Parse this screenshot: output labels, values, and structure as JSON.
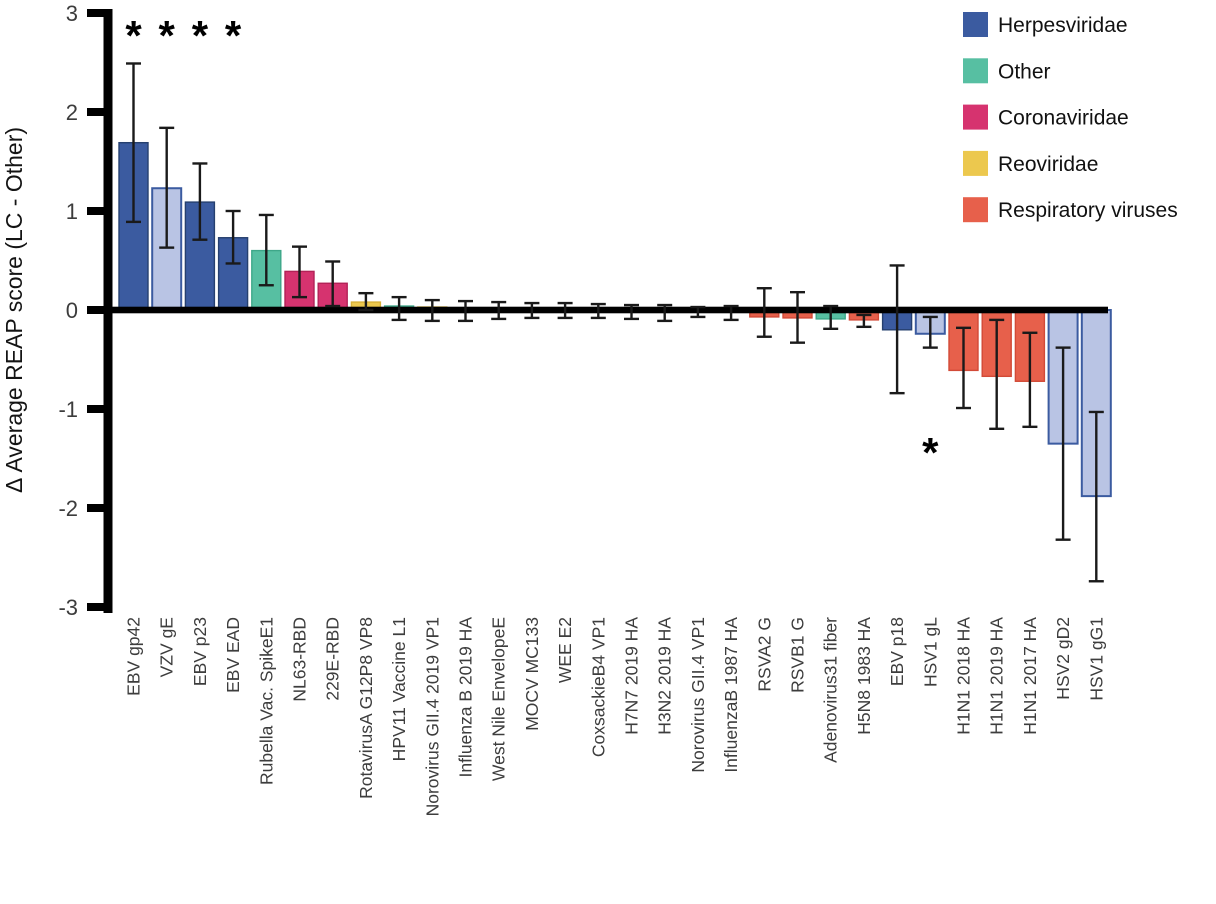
{
  "figure_name": "REAP score difference bar chart",
  "chart_data": {
    "type": "bar",
    "title": "",
    "xlabel": "",
    "ylabel": "Δ Average REAP score (LC - Other)",
    "ylim": [
      -3,
      3
    ],
    "yticks": [
      3,
      2,
      1,
      0,
      -1,
      -2,
      -3
    ],
    "grid": false,
    "legend_position": "top-right",
    "significance_marker": "*",
    "legend": [
      {
        "label": "Herpesviridae",
        "color_key": "blue"
      },
      {
        "label": "Other",
        "color_key": "teal"
      },
      {
        "label": "Coronaviridae",
        "color_key": "magenta"
      },
      {
        "label": "Reoviridae",
        "color_key": "yellow"
      },
      {
        "label": "Respiratory viruses",
        "color_key": "red"
      }
    ],
    "bars": [
      {
        "label": "EBV gp42",
        "color_key": "blue",
        "value": 1.69,
        "err_hi": 2.49,
        "err_lo": 0.89,
        "significant": "above"
      },
      {
        "label": "VZV gE",
        "color_key": "blue_light",
        "value": 1.23,
        "err_hi": 1.84,
        "err_lo": 0.63,
        "significant": "above"
      },
      {
        "label": "EBV p23",
        "color_key": "blue",
        "value": 1.09,
        "err_hi": 1.48,
        "err_lo": 0.71,
        "significant": "above"
      },
      {
        "label": "EBV EAD",
        "color_key": "blue",
        "value": 0.73,
        "err_hi": 1.0,
        "err_lo": 0.47,
        "significant": "above"
      },
      {
        "label": "Rubella Vac. SpikeE1",
        "color_key": "teal",
        "value": 0.6,
        "err_hi": 0.96,
        "err_lo": 0.25,
        "significant": null
      },
      {
        "label": "NL63-RBD",
        "color_key": "magenta",
        "value": 0.39,
        "err_hi": 0.64,
        "err_lo": 0.13,
        "significant": null
      },
      {
        "label": "229E-RBD",
        "color_key": "magenta",
        "value": 0.27,
        "err_hi": 0.49,
        "err_lo": 0.04,
        "significant": null
      },
      {
        "label": "RotavirusA G12P8 VP8",
        "color_key": "yellow",
        "value": 0.08,
        "err_hi": 0.17,
        "err_lo": 0.0,
        "significant": null
      },
      {
        "label": "HPV11 Vaccine L1",
        "color_key": "teal",
        "value": 0.04,
        "err_hi": 0.13,
        "err_lo": -0.1,
        "significant": null
      },
      {
        "label": "Norovirus GII.4 2019 VP1",
        "color_key": "yellow",
        "value": 0.03,
        "err_hi": 0.1,
        "err_lo": -0.11,
        "significant": null
      },
      {
        "label": "Influenza B 2019 HA",
        "color_key": "red",
        "value": 0.02,
        "err_hi": 0.09,
        "err_lo": -0.11,
        "significant": null
      },
      {
        "label": "West Nile EnvelopeE",
        "color_key": "teal",
        "value": 0.02,
        "err_hi": 0.08,
        "err_lo": -0.09,
        "significant": null
      },
      {
        "label": "MOCV MC133",
        "color_key": "teal",
        "value": 0.02,
        "err_hi": 0.07,
        "err_lo": -0.08,
        "significant": null
      },
      {
        "label": "WEE E2",
        "color_key": "teal",
        "value": 0.01,
        "err_hi": 0.07,
        "err_lo": -0.08,
        "significant": null
      },
      {
        "label": "CoxsackieB4 VP1",
        "color_key": "teal",
        "value": 0.01,
        "err_hi": 0.06,
        "err_lo": -0.08,
        "significant": null
      },
      {
        "label": "H7N7 2019 HA",
        "color_key": "red",
        "value": -0.02,
        "err_hi": 0.05,
        "err_lo": -0.09,
        "significant": null
      },
      {
        "label": "H3N2 2019 HA",
        "color_key": "red",
        "value": -0.02,
        "err_hi": 0.05,
        "err_lo": -0.11,
        "significant": null
      },
      {
        "label": "Norovirus GII.4 VP1",
        "color_key": "yellow",
        "value": -0.01,
        "err_hi": 0.03,
        "err_lo": -0.07,
        "significant": null
      },
      {
        "label": "InfluenzaB 1987 HA",
        "color_key": "red",
        "value": -0.02,
        "err_hi": 0.04,
        "err_lo": -0.1,
        "significant": null
      },
      {
        "label": "RSVA2 G",
        "color_key": "red",
        "value": -0.07,
        "err_hi": 0.22,
        "err_lo": -0.27,
        "significant": null
      },
      {
        "label": "RSVB1 G",
        "color_key": "red",
        "value": -0.08,
        "err_hi": 0.18,
        "err_lo": -0.33,
        "significant": null
      },
      {
        "label": "Adenovirus31 fiber",
        "color_key": "teal",
        "value": -0.09,
        "err_hi": 0.04,
        "err_lo": -0.19,
        "significant": null
      },
      {
        "label": "H5N8 1983 HA",
        "color_key": "red",
        "value": -0.1,
        "err_hi": -0.05,
        "err_lo": -0.17,
        "significant": null
      },
      {
        "label": "EBV p18",
        "color_key": "blue",
        "value": -0.2,
        "err_hi": 0.45,
        "err_lo": -0.84,
        "significant": null
      },
      {
        "label": "HSV1 gL",
        "color_key": "blue_light",
        "value": -0.24,
        "err_hi": -0.07,
        "err_lo": -0.38,
        "significant": "below"
      },
      {
        "label": "H1N1 2018 HA",
        "color_key": "red",
        "value": -0.61,
        "err_hi": -0.18,
        "err_lo": -0.99,
        "significant": null
      },
      {
        "label": "H1N1 2019 HA",
        "color_key": "red",
        "value": -0.67,
        "err_hi": -0.1,
        "err_lo": -1.2,
        "significant": null
      },
      {
        "label": "H1N1 2017 HA",
        "color_key": "red",
        "value": -0.72,
        "err_hi": -0.23,
        "err_lo": -1.18,
        "significant": null
      },
      {
        "label": "HSV2 gD2",
        "color_key": "blue_light",
        "value": -1.35,
        "err_hi": -0.38,
        "err_lo": -2.32,
        "significant": null
      },
      {
        "label": "HSV1 gG1",
        "color_key": "blue_light",
        "value": -1.88,
        "err_hi": -1.03,
        "err_lo": -2.74,
        "significant": null
      }
    ]
  },
  "colors": {
    "background": "#ffffff",
    "axis": "#000000",
    "error_bar": "#1a1a1a",
    "tick_text": "#3c3c3c",
    "x_label_text": "#3d3d3d",
    "legend_text": "#111111",
    "ylabel_text": "#141414",
    "significance_text": "#000000",
    "palette": {
      "blue": {
        "fill": "#3B5BA0",
        "stroke": "#26406F"
      },
      "blue_light": {
        "fill": "#B9C4E4",
        "stroke": "#3B5BA0"
      },
      "teal": {
        "fill": "#57BFA2",
        "stroke": "#3EA789"
      },
      "magenta": {
        "fill": "#D6336F",
        "stroke": "#B22257"
      },
      "yellow": {
        "fill": "#ECC84E",
        "stroke": "#D7B138"
      },
      "red": {
        "fill": "#E7604B",
        "stroke": "#D24A37"
      }
    }
  }
}
